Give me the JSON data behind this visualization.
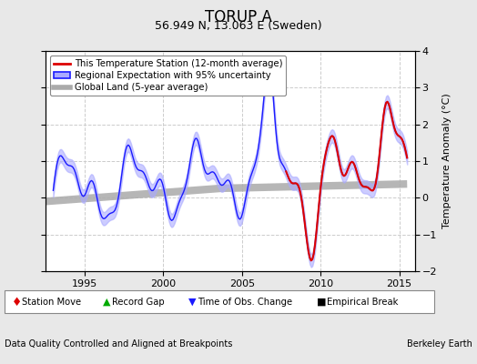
{
  "title": "TORUP A",
  "subtitle": "56.949 N, 13.063 E (Sweden)",
  "ylabel": "Temperature Anomaly (°C)",
  "xlabel_left": "Data Quality Controlled and Aligned at Breakpoints",
  "xlabel_right": "Berkeley Earth",
  "ylim": [
    -2.0,
    4.0
  ],
  "xlim": [
    1992.5,
    2016.0
  ],
  "xticks": [
    1995,
    2000,
    2005,
    2010,
    2015
  ],
  "yticks": [
    -2,
    -1,
    0,
    1,
    2,
    3,
    4
  ],
  "legend_entries": [
    "This Temperature Station (12-month average)",
    "Regional Expectation with 95% uncertainty",
    "Global Land (5-year average)"
  ],
  "background_color": "#e8e8e8",
  "plot_bg_color": "#ffffff",
  "grid_color": "#cccccc",
  "title_fontsize": 12,
  "subtitle_fontsize": 9,
  "label_fontsize": 8,
  "tick_fontsize": 8,
  "regional_color": "#1a1aff",
  "regional_band_color": "#aaaaff",
  "station_color": "#dd0000",
  "global_color": "#aaaaaa"
}
